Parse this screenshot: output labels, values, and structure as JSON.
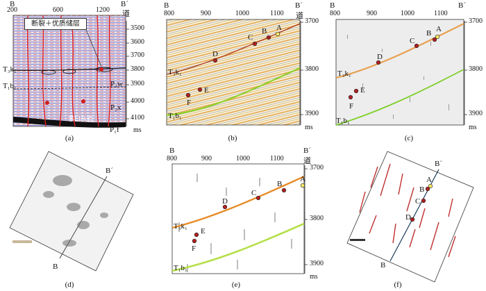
{
  "panel_a": {
    "caption": "(a)",
    "top_left": "B",
    "top_right": "B´",
    "trace_label": "道",
    "x_ticks": [
      "200",
      "600",
      "1200"
    ],
    "y_ticks": [
      "3500",
      "3600",
      "3700",
      "3800",
      "3900",
      "4000",
      "4100"
    ],
    "y_unit": "ms",
    "callout": "断裂＋优质储层",
    "horizons": [
      "T₃k₁",
      "T₁b₁",
      "P₂w",
      "P₂x",
      "P₁f"
    ],
    "marker_bed": "茅口灰岩"
  },
  "panel_b": {
    "caption": "(b)",
    "top_left": "B",
    "top_right": "B´",
    "trace_label": "道",
    "x_ticks": [
      "800",
      "900",
      "1000",
      "1100"
    ],
    "y_ticks": [
      "3700",
      "3800",
      "3900"
    ],
    "y_unit": "ms",
    "horizons": [
      "T₃k₁",
      "T₁b₁"
    ],
    "points": [
      "A",
      "B",
      "C",
      "D",
      "E",
      "F"
    ]
  },
  "panel_c": {
    "caption": "(c)",
    "top_left": "B",
    "top_right": "B´",
    "x_ticks": [
      "800",
      "900",
      "1000",
      "1100"
    ],
    "y_ticks": [
      "3700",
      "3800",
      "3900"
    ],
    "y_unit": "ms",
    "horizons": [
      "T₃k₁",
      "T₁b₁"
    ],
    "points": [
      "A",
      "B",
      "C",
      "D",
      "E",
      "F"
    ]
  },
  "panel_d": {
    "caption": "(d)",
    "top_right": "B´",
    "bottom_left": "B"
  },
  "panel_e": {
    "caption": "(e)",
    "top_left": "B",
    "top_right": "B´",
    "trace_label": "道",
    "x_ticks": [
      "800",
      "900",
      "1000",
      "1100"
    ],
    "y_ticks": [
      "3700",
      "3800",
      "3900"
    ],
    "y_unit": "ms",
    "horizons": [
      "T₃k₁",
      "T₁b₁"
    ],
    "points": [
      "A",
      "B",
      "C",
      "D",
      "E",
      "F"
    ]
  },
  "panel_f": {
    "caption": "(f)",
    "top_right": "B´",
    "bottom_left": "B",
    "points": [
      "A",
      "B",
      "C",
      "D"
    ]
  }
}
